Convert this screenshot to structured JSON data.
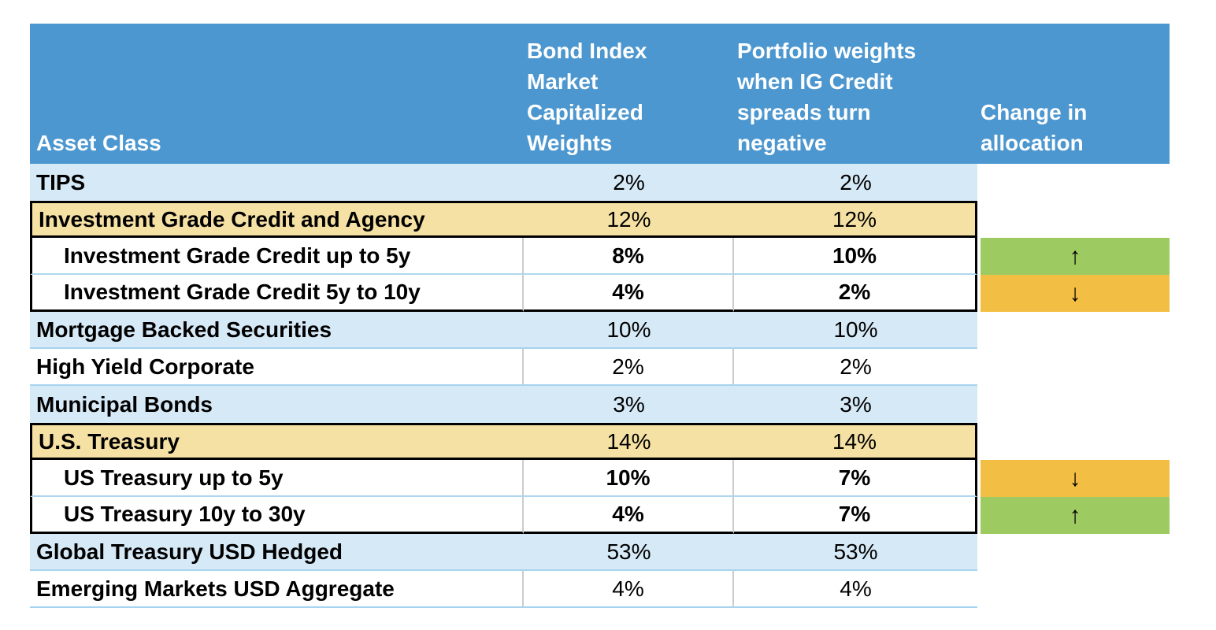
{
  "colors": {
    "header_blue": "#4C97CF",
    "row_light_blue": "#D6E9F6",
    "row_tan_highlight": "#F6E1A4",
    "change_up_green": "#9DCB62",
    "change_down_orange": "#F2BF44"
  },
  "table": {
    "header": {
      "asset_class": "Asset Class",
      "bond_index": "Bond Index Market Capitalized Weights",
      "portfolio": "Portfolio weights when IG Credit spreads turn negative",
      "change": "Change in allocation"
    },
    "rows": [
      {
        "asset": "TIPS",
        "bond_index": "2%",
        "portfolio": "2%",
        "change": ""
      },
      {
        "asset": "Investment Grade Credit and Agency",
        "bond_index": "12%",
        "portfolio": "12%",
        "change": ""
      },
      {
        "asset": "Investment Grade Credit up to 5y",
        "bond_index": "8%",
        "portfolio": "10%",
        "change": "↑",
        "change_direction": "up"
      },
      {
        "asset": "Investment Grade Credit 5y to 10y",
        "bond_index": "4%",
        "portfolio": "2%",
        "change": "↓",
        "change_direction": "down"
      },
      {
        "asset": "Mortgage Backed Securities",
        "bond_index": "10%",
        "portfolio": "10%",
        "change": ""
      },
      {
        "asset": "High Yield Corporate",
        "bond_index": "2%",
        "portfolio": "2%",
        "change": ""
      },
      {
        "asset": "Municipal Bonds",
        "bond_index": "3%",
        "portfolio": "3%",
        "change": ""
      },
      {
        "asset": "U.S. Treasury",
        "bond_index": "14%",
        "portfolio": "14%",
        "change": ""
      },
      {
        "asset": "US Treasury up to 5y",
        "bond_index": "10%",
        "portfolio": "7%",
        "change": "↓",
        "change_direction": "down"
      },
      {
        "asset": "US Treasury 10y to 30y",
        "bond_index": "4%",
        "portfolio": "7%",
        "change": "↑",
        "change_direction": "up"
      },
      {
        "asset": "Global Treasury USD Hedged",
        "bond_index": "53%",
        "portfolio": "53%",
        "change": ""
      },
      {
        "asset": "Emerging Markets USD Aggregate",
        "bond_index": "4%",
        "portfolio": "4%",
        "change": ""
      }
    ]
  }
}
